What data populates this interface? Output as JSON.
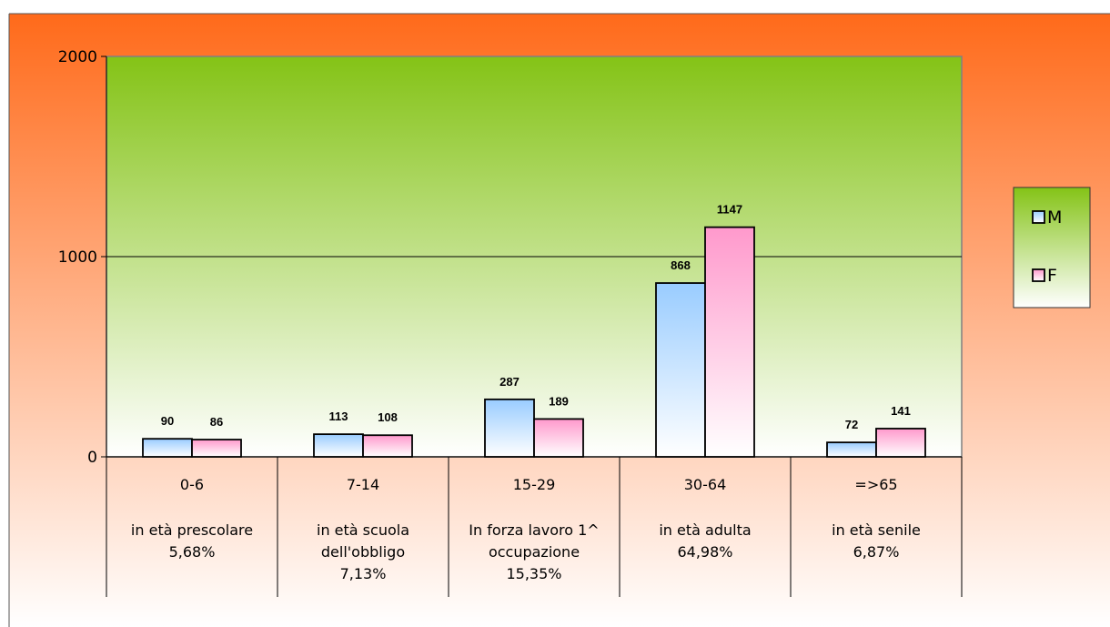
{
  "chart_data": {
    "type": "bar",
    "title": "",
    "xlabel": "",
    "ylabel": "",
    "ylim": [
      0,
      2000
    ],
    "yticks": [
      0,
      1000,
      2000
    ],
    "grid": true,
    "legend_position": "right",
    "categories": [
      {
        "label": "0-6",
        "desc": [
          "in età prescolare",
          "5,68%"
        ]
      },
      {
        "label": "7-14",
        "desc": [
          "in età scuola",
          "dell'obbligo",
          "7,13%"
        ]
      },
      {
        "label": "15-29",
        "desc": [
          "In forza lavoro 1^",
          "occupazione",
          "15,35%"
        ]
      },
      {
        "label": "30-64",
        "desc": [
          "in età adulta",
          "64,98%"
        ]
      },
      {
        "label": "=>65",
        "desc": [
          "in età senile",
          "6,87%"
        ]
      }
    ],
    "series": [
      {
        "name": "M",
        "values": [
          90,
          113,
          287,
          868,
          72
        ],
        "color": "#99ccff"
      },
      {
        "name": "F",
        "values": [
          86,
          108,
          189,
          1147,
          141
        ],
        "color": "#ff99cc"
      }
    ],
    "colors": {
      "background_top": "#ff6a1a",
      "background_bottom": "#ffffff",
      "plot_top": "#84c316",
      "plot_bottom": "#ffffff"
    }
  }
}
